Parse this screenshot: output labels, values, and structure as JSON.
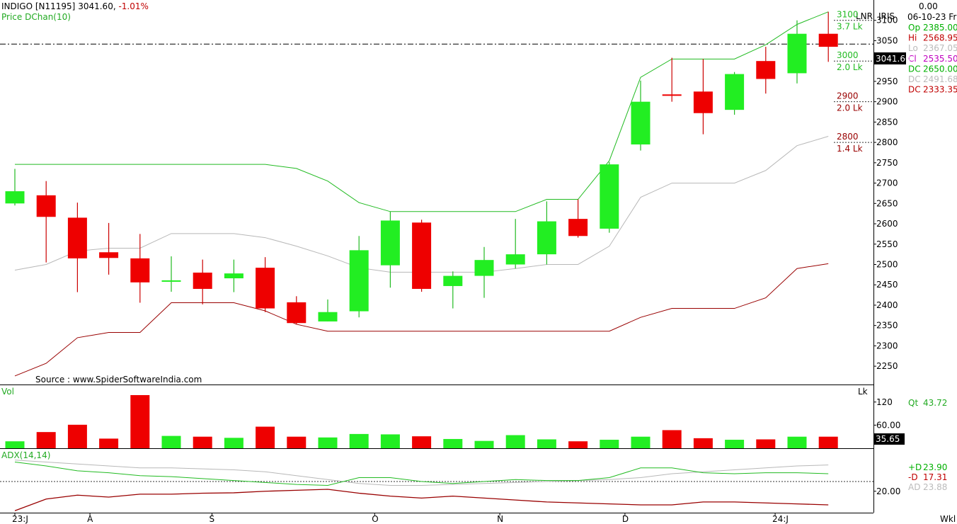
{
  "header": {
    "symbol": "INDIGO [N11195]",
    "last": "3041.60,",
    "change": "-1.01%",
    "indicator_label": "Price",
    "indicator_name": "DChan(10)",
    "top_right_value": "0.00",
    "date": "06-10-23 Fri",
    "scale_mode": "LNR",
    "brand": "IRIS"
  },
  "info_panel": [
    {
      "label": "Op",
      "value": "2385.00",
      "color": "#00b000"
    },
    {
      "label": "Hi",
      "value": "2568.95",
      "color": "#c00000"
    },
    {
      "label": "Lo",
      "value": "2367.05",
      "color": "#bbbbbb"
    },
    {
      "label": "Cl",
      "value": "2535.50",
      "color": "#c000c0"
    },
    {
      "label": "DC",
      "value": "2650.00",
      "color": "#00b000"
    },
    {
      "label": "DC",
      "value": "2491.68",
      "color": "#bbbbbb"
    },
    {
      "label": "DC",
      "value": "2333.35",
      "color": "#c00000"
    }
  ],
  "source_note": "Source : www.SpiderSoftwareIndia.com",
  "last_price_tag": "3041.60",
  "colors": {
    "up": "#22ee22",
    "down": "#ee0000",
    "upper_band": "#22bb22",
    "mid_band": "#b8b8b8",
    "lower_band": "#990000",
    "plus_di": "#22bb22",
    "minus_di": "#990000",
    "adx": "#b8b8b8"
  },
  "chart_data": {
    "type": "candlestick",
    "timeframe": "Wkl",
    "x_tick_labels": [
      {
        "label": "23:J",
        "index": 0
      },
      {
        "label": "A",
        "index": 2.4
      },
      {
        "label": "S",
        "index": 6.3
      },
      {
        "label": "O",
        "index": 11.5
      },
      {
        "label": "N",
        "index": 15.5
      },
      {
        "label": "D",
        "index": 19.5
      },
      {
        "label": "24:J",
        "index": 24.3
      }
    ],
    "price": {
      "y_ticks": [
        2250,
        2300,
        2350,
        2400,
        2450,
        2500,
        2550,
        2600,
        2650,
        2700,
        2750,
        2800,
        2850,
        2900,
        2950,
        3000,
        3050,
        3100
      ],
      "ylim": [
        2205,
        3150
      ],
      "candles": [
        {
          "o": 2650,
          "h": 2735,
          "l": 2645,
          "c": 2680
        },
        {
          "o": 2670,
          "h": 2705,
          "l": 2505,
          "c": 2617
        },
        {
          "o": 2615,
          "h": 2652,
          "l": 2432,
          "c": 2515
        },
        {
          "o": 2530,
          "h": 2602,
          "l": 2475,
          "c": 2516
        },
        {
          "o": 2515,
          "h": 2575,
          "l": 2406,
          "c": 2456
        },
        {
          "o": 2460,
          "h": 2520,
          "l": 2433,
          "c": 2461
        },
        {
          "o": 2480,
          "h": 2512,
          "l": 2402,
          "c": 2440
        },
        {
          "o": 2466,
          "h": 2512,
          "l": 2432,
          "c": 2478
        },
        {
          "o": 2492,
          "h": 2518,
          "l": 2383,
          "c": 2392
        },
        {
          "o": 2407,
          "h": 2422,
          "l": 2353,
          "c": 2356
        },
        {
          "o": 2360,
          "h": 2414,
          "l": 2360,
          "c": 2383
        },
        {
          "o": 2385,
          "h": 2570,
          "l": 2370,
          "c": 2535
        },
        {
          "o": 2498,
          "h": 2630,
          "l": 2443,
          "c": 2608
        },
        {
          "o": 2603,
          "h": 2610,
          "l": 2433,
          "c": 2440
        },
        {
          "o": 2447,
          "h": 2483,
          "l": 2392,
          "c": 2472
        },
        {
          "o": 2472,
          "h": 2543,
          "l": 2418,
          "c": 2511
        },
        {
          "o": 2500,
          "h": 2612,
          "l": 2490,
          "c": 2525
        },
        {
          "o": 2525,
          "h": 2655,
          "l": 2500,
          "c": 2606
        },
        {
          "o": 2612,
          "h": 2660,
          "l": 2566,
          "c": 2570
        },
        {
          "o": 2588,
          "h": 2752,
          "l": 2578,
          "c": 2746
        },
        {
          "o": 2795,
          "h": 2952,
          "l": 2780,
          "c": 2900
        },
        {
          "o": 2918,
          "h": 3008,
          "l": 2900,
          "c": 2915
        },
        {
          "o": 2925,
          "h": 3005,
          "l": 2820,
          "c": 2872
        },
        {
          "o": 2880,
          "h": 2973,
          "l": 2868,
          "c": 2968
        },
        {
          "o": 3000,
          "h": 3035,
          "l": 2920,
          "c": 2956
        },
        {
          "o": 2970,
          "h": 3100,
          "l": 2945,
          "c": 3067
        },
        {
          "o": 3067,
          "h": 3121,
          "l": 2998,
          "c": 3035
        }
      ],
      "donchian_upper": [
        2746,
        2746,
        2746,
        2746,
        2746,
        2746,
        2746,
        2746,
        2746,
        2736,
        2705,
        2652,
        2630,
        2630,
        2630,
        2630,
        2630,
        2660,
        2660,
        2755,
        2960,
        3005,
        3005,
        3005,
        3040,
        3090,
        3121
      ],
      "donchian_middle": [
        2486,
        2500,
        2533,
        2540,
        2540,
        2576,
        2576,
        2576,
        2566,
        2545,
        2521,
        2492,
        2481,
        2481,
        2481,
        2481,
        2490,
        2500,
        2500,
        2545,
        2665,
        2700,
        2700,
        2700,
        2731,
        2792,
        2815
      ],
      "donchian_lower": [
        2226,
        2257,
        2320,
        2333,
        2333,
        2406,
        2406,
        2406,
        2386,
        2353,
        2336,
        2336,
        2336,
        2336,
        2336,
        2336,
        2336,
        2336,
        2336,
        2336,
        2370,
        2392,
        2392,
        2392,
        2418,
        2490,
        2502
      ],
      "price_level_labels": [
        {
          "price": 3100,
          "label": "3100",
          "sub": "3.7 Lk",
          "color": "#22bb22"
        },
        {
          "price": 3000,
          "label": "3000",
          "sub": "2.0 Lk",
          "color": "#22bb22"
        },
        {
          "price": 2900,
          "label": "2900",
          "sub": "2.0 Lk",
          "color": "#990000"
        },
        {
          "price": 2800,
          "label": "2800",
          "sub": "1.4 Lk",
          "color": "#990000"
        }
      ],
      "reference_line": 3041.6
    },
    "volume": {
      "title": "Vol",
      "unit": "Lk",
      "y_ticks": [
        60,
        120
      ],
      "tick_labels": [
        "60.00",
        "120"
      ],
      "ylim": [
        0,
        160
      ],
      "values": [
        18,
        42,
        61,
        25,
        138,
        32,
        30,
        27,
        56,
        30,
        28,
        37,
        36,
        31,
        24,
        19,
        34,
        23,
        18,
        22,
        30,
        47,
        26,
        22,
        23,
        30,
        30
      ],
      "qt_label": "Qt",
      "qt_value": "43.72",
      "current_tag": "35.65"
    },
    "adx": {
      "title": "ADX(14,14)",
      "y_ticks": [
        20
      ],
      "tick_labels": [
        "20.00"
      ],
      "ylim": [
        9,
        41
      ],
      "reference_line": 25,
      "plus_di": [
        35,
        33,
        30.5,
        29.5,
        28,
        27.5,
        26.5,
        25.5,
        24.5,
        23.5,
        23,
        27,
        27,
        25,
        24,
        25,
        26,
        25.5,
        25.5,
        27,
        32,
        32,
        29.5,
        29,
        29.5,
        29.5,
        29
      ],
      "minus_di": [
        10,
        16,
        18,
        17,
        18.5,
        18.5,
        19,
        19.2,
        20,
        20.5,
        21,
        19,
        17.5,
        16.5,
        17.5,
        16.5,
        15.5,
        14.5,
        14,
        13.5,
        13,
        13,
        14.5,
        14.5,
        14,
        13.5,
        13
      ],
      "adx_line": [
        36,
        35,
        34,
        33,
        32,
        32,
        31.5,
        31,
        30,
        28,
        26,
        24,
        23,
        23,
        23.5,
        24,
        24.5,
        25,
        25.5,
        26,
        27,
        29,
        30,
        31,
        32,
        33,
        33.5
      ],
      "legend": [
        {
          "label": "+D",
          "value": "23.90",
          "color": "#00b000"
        },
        {
          "label": "-D",
          "value": "17.31",
          "color": "#c00000"
        },
        {
          "label": "AD",
          "value": "23.88",
          "color": "#bbbbbb"
        }
      ]
    }
  }
}
